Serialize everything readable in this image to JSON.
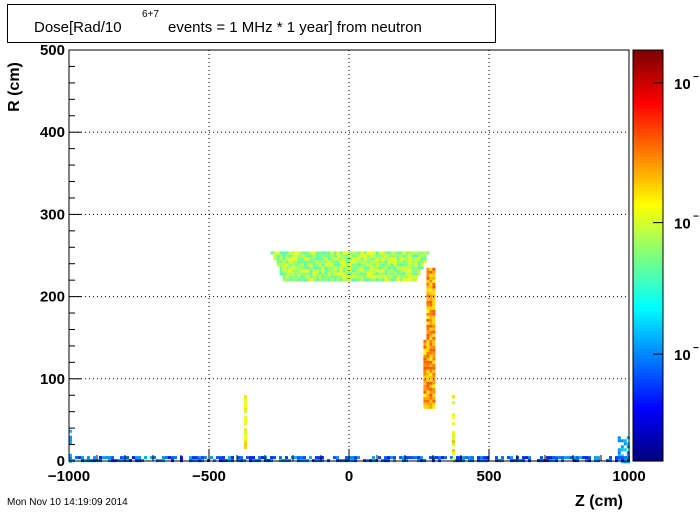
{
  "title": {
    "prefix": "Dose[Rad/10",
    "exponent": "6+7",
    "suffix": "events = 1 MHz * 1 year] from neutron"
  },
  "timestamp": "Mon Nov 10 14:19:09 2014",
  "colors": {
    "palette": [
      "#00007f",
      "#0000ff",
      "#007fff",
      "#00ffff",
      "#7fff7f",
      "#ffff00",
      "#ff7f00",
      "#ff0000",
      "#7f0000"
    ],
    "grid": "#000000",
    "frame": "#000000"
  },
  "chart_data": {
    "type": "heatmap",
    "xlabel": "Z (cm)",
    "ylabel": "R (cm)",
    "xlim": [
      -1000,
      1000
    ],
    "ylim": [
      0,
      500
    ],
    "xticks": [
      -1000,
      -500,
      0,
      500,
      1000
    ],
    "xtick_labels": [
      "−1000",
      "−500",
      "0",
      "500",
      "1000"
    ],
    "yticks": [
      0,
      100,
      200,
      300,
      400,
      500
    ],
    "ytick_labels": [
      "0",
      "100",
      "200",
      "300",
      "400",
      "500"
    ],
    "grid": true,
    "colorbar": {
      "scale": "log",
      "tick_labels": [
        "10",
        "10",
        "10"
      ],
      "tick_exponent": "−",
      "tick_positions": [
        0.26,
        0.58,
        0.92
      ]
    },
    "regions": [
      {
        "z": [
          -280,
          280
        ],
        "r": [
          220,
          255
        ],
        "intensity": [
          0.45,
          0.62
        ],
        "note": "barrel band"
      },
      {
        "z": [
          255,
          305
        ],
        "r": [
          65,
          235
        ],
        "intensity": [
          0.62,
          0.8
        ],
        "note": "vertical band"
      },
      {
        "z": [
          -1000,
          -990
        ],
        "r": [
          0,
          38
        ],
        "intensity": [
          0.25,
          0.35
        ]
      },
      {
        "z": [
          960,
          1000
        ],
        "r": [
          0,
          30
        ],
        "intensity": [
          0.25,
          0.35
        ]
      },
      {
        "z": [
          -1000,
          1000
        ],
        "r": [
          0,
          6
        ],
        "intensity": [
          0.15,
          0.3
        ]
      },
      {
        "z": [
          -375,
          -368
        ],
        "r": [
          0,
          80
        ],
        "intensity": [
          0.55,
          0.7
        ]
      },
      {
        "z": [
          368,
          375
        ],
        "r": [
          0,
          80
        ],
        "intensity": [
          0.55,
          0.7
        ]
      }
    ]
  }
}
